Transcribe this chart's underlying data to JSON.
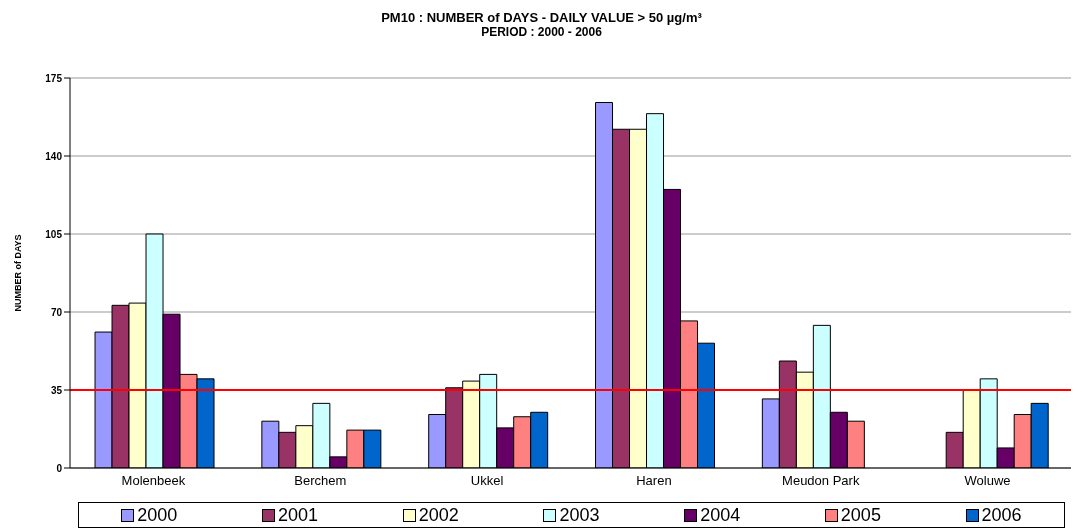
{
  "chart_data": {
    "type": "bar",
    "title": "PM10 : NUMBER of DAYS  -  DAILY VALUE > 50 µg/m³",
    "subtitle": "PERIOD : 2000 - 2006",
    "ylabel": "NUMBER of DAYS",
    "categories": [
      "Molenbeek",
      "Berchem",
      "Ukkel",
      "Haren",
      "Meudon Park",
      "Woluwe"
    ],
    "series": [
      {
        "name": "2000",
        "color": "#9999ff",
        "values": [
          61,
          21,
          24,
          164,
          31,
          null
        ]
      },
      {
        "name": "2001",
        "color": "#993366",
        "values": [
          73,
          16,
          36,
          152,
          48,
          16
        ]
      },
      {
        "name": "2002",
        "color": "#ffffcc",
        "values": [
          74,
          19,
          39,
          152,
          43,
          35
        ]
      },
      {
        "name": "2003",
        "color": "#ccffff",
        "values": [
          105,
          29,
          42,
          159,
          64,
          40
        ]
      },
      {
        "name": "2004",
        "color": "#660066",
        "values": [
          69,
          5,
          18,
          125,
          25,
          9
        ]
      },
      {
        "name": "2005",
        "color": "#ff8080",
        "values": [
          42,
          17,
          23,
          66,
          21,
          24
        ]
      },
      {
        "name": "2006",
        "color": "#0066cc",
        "values": [
          40,
          17,
          25,
          56,
          null,
          29
        ]
      }
    ],
    "ylim": [
      0,
      175
    ],
    "yticks": [
      0,
      35,
      70,
      105,
      140,
      175
    ],
    "grid": "y",
    "legend": "bottom",
    "ref_lines": [
      {
        "axis": "y",
        "value": 35,
        "color": "#ff0000"
      }
    ]
  }
}
